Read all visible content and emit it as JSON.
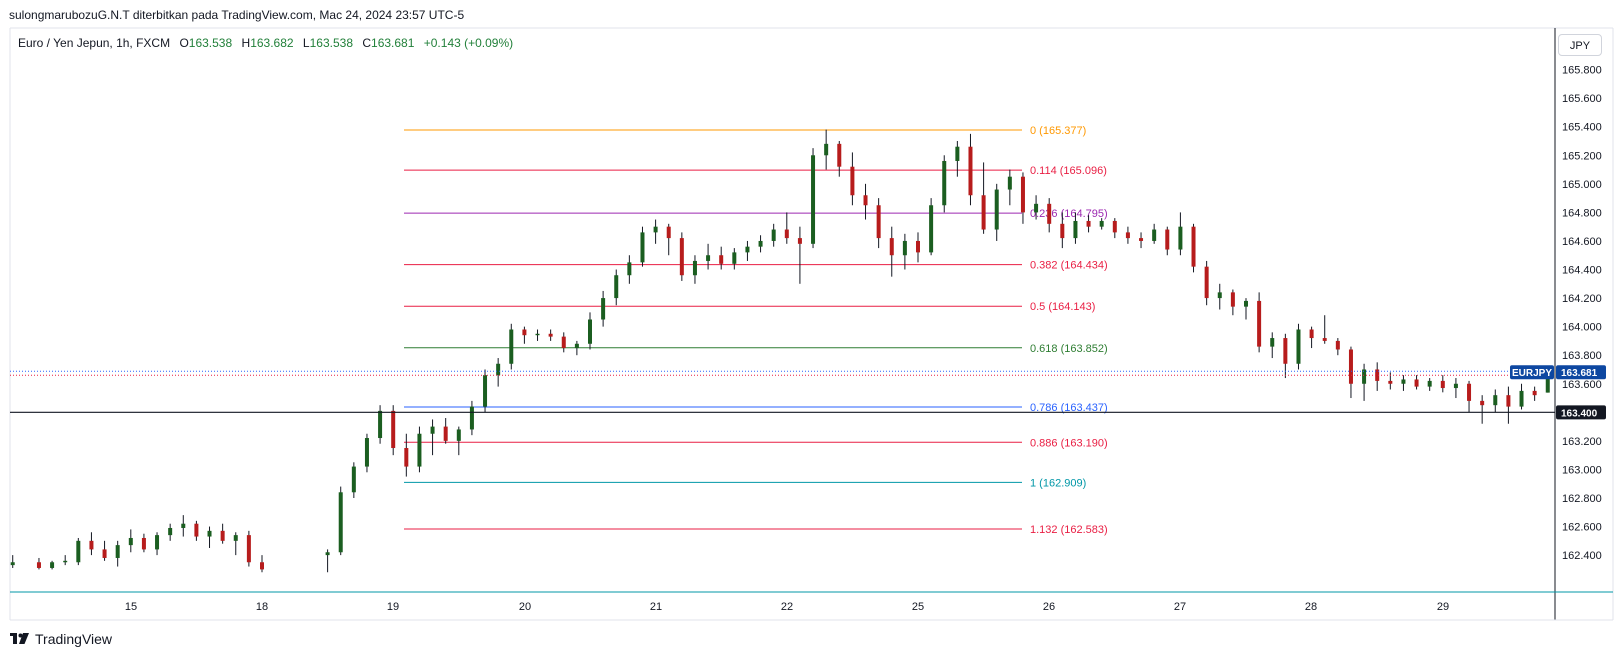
{
  "header": {
    "publisher_text": "sulongmarubozuG.N.T diterbitkan pada TradingView.com, Mac 24, 2024 23:57 UTC-5"
  },
  "legend": {
    "symbol_text": "Euro / Yen Jepun, 1h, FXCM",
    "open_label": "O",
    "open": "163.538",
    "high_label": "H",
    "high": "163.682",
    "low_label": "L",
    "low": "163.538",
    "close_label": "C",
    "close": "163.681",
    "change": "+0.143 (+0.09%)"
  },
  "price_axis": {
    "currency": "JPY",
    "ticks": [
      "165.800",
      "165.600",
      "165.400",
      "165.200",
      "165.000",
      "164.800",
      "164.600",
      "164.400",
      "164.200",
      "164.000",
      "163.800",
      "163.600",
      "163.200",
      "163.000",
      "162.800",
      "162.600",
      "162.400"
    ]
  },
  "price_badge": {
    "symbol": "EURJPY",
    "price": "163.681"
  },
  "crosshair_label": "163.400",
  "time_axis": {
    "ticks": [
      "15",
      "18",
      "19",
      "20",
      "21",
      "22",
      "25",
      "26",
      "27",
      "28",
      "29"
    ]
  },
  "brand": {
    "name": "TradingView"
  },
  "colors": {
    "up": "#1b5e20",
    "down": "#b71c1c",
    "badge": "#0d47a1"
  },
  "chart_data": {
    "type": "candlestick",
    "symbol": "EURJPY",
    "interval": "1h",
    "ylim": [
      162.3,
      165.95
    ],
    "current_price": 163.681,
    "horizontal_line": 163.4,
    "candles": [
      [
        15.6,
        162.3,
        162.38,
        162.29,
        162.36
      ],
      [
        15.8,
        162.32,
        162.38,
        162.3,
        162.34
      ],
      [
        16.1,
        162.33,
        162.4,
        162.31,
        162.35
      ],
      [
        16.3,
        162.35,
        162.38,
        162.3,
        162.31
      ],
      [
        16.4,
        162.31,
        162.36,
        162.3,
        162.35
      ],
      [
        16.5,
        162.35,
        162.4,
        162.33,
        162.36
      ],
      [
        16.6,
        162.35,
        162.52,
        162.33,
        162.5
      ],
      [
        16.7,
        162.5,
        162.56,
        162.4,
        162.44
      ],
      [
        16.8,
        162.44,
        162.5,
        162.36,
        162.38
      ],
      [
        16.9,
        162.38,
        162.5,
        162.32,
        162.47
      ],
      [
        17.0,
        162.47,
        162.58,
        162.42,
        162.52
      ],
      [
        17.1,
        162.52,
        162.55,
        162.42,
        162.44
      ],
      [
        17.2,
        162.44,
        162.56,
        162.4,
        162.54
      ],
      [
        17.3,
        162.54,
        162.62,
        162.5,
        162.59
      ],
      [
        17.4,
        162.59,
        162.68,
        162.53,
        162.62
      ],
      [
        17.5,
        162.62,
        162.64,
        162.5,
        162.53
      ],
      [
        17.6,
        162.53,
        162.6,
        162.45,
        162.57
      ],
      [
        17.7,
        162.57,
        162.62,
        162.48,
        162.5
      ],
      [
        17.8,
        162.5,
        162.56,
        162.4,
        162.54
      ],
      [
        17.9,
        162.54,
        162.57,
        162.32,
        162.35
      ],
      [
        18.0,
        162.35,
        162.4,
        162.28,
        162.3
      ],
      [
        18.5,
        162.4,
        162.44,
        162.28,
        162.42
      ],
      [
        18.6,
        162.42,
        162.88,
        162.4,
        162.84
      ],
      [
        18.7,
        162.84,
        163.05,
        162.8,
        163.02
      ],
      [
        18.8,
        163.02,
        163.25,
        162.98,
        163.22
      ],
      [
        18.9,
        163.22,
        163.45,
        163.18,
        163.41
      ],
      [
        19.0,
        163.41,
        163.45,
        163.1,
        163.15
      ],
      [
        19.1,
        163.15,
        163.25,
        162.95,
        163.02
      ],
      [
        19.2,
        163.02,
        163.3,
        162.98,
        163.25
      ],
      [
        19.3,
        163.25,
        163.35,
        163.1,
        163.3
      ],
      [
        19.4,
        163.3,
        163.36,
        163.18,
        163.2
      ],
      [
        19.5,
        163.2,
        163.3,
        163.1,
        163.28
      ],
      [
        19.6,
        163.28,
        163.48,
        163.24,
        163.44
      ],
      [
        19.7,
        163.44,
        163.7,
        163.4,
        163.66
      ],
      [
        19.8,
        163.66,
        163.78,
        163.58,
        163.74
      ],
      [
        19.9,
        163.74,
        164.02,
        163.7,
        163.98
      ],
      [
        20.0,
        163.98,
        164.0,
        163.88,
        163.94
      ],
      [
        20.1,
        163.94,
        163.98,
        163.9,
        163.95
      ],
      [
        20.2,
        163.95,
        163.98,
        163.9,
        163.93
      ],
      [
        20.3,
        163.93,
        163.96,
        163.82,
        163.85
      ],
      [
        20.4,
        163.85,
        163.9,
        163.8,
        163.88
      ],
      [
        20.5,
        163.88,
        164.1,
        163.84,
        164.05
      ],
      [
        20.6,
        164.05,
        164.25,
        164.0,
        164.2
      ],
      [
        20.7,
        164.2,
        164.4,
        164.15,
        164.36
      ],
      [
        20.8,
        164.36,
        164.5,
        164.3,
        164.45
      ],
      [
        20.9,
        164.45,
        164.7,
        164.42,
        164.66
      ],
      [
        21.0,
        164.66,
        164.75,
        164.58,
        164.7
      ],
      [
        21.1,
        164.7,
        164.72,
        164.5,
        164.62
      ],
      [
        21.2,
        164.62,
        164.66,
        164.32,
        164.36
      ],
      [
        21.3,
        164.36,
        164.5,
        164.3,
        164.46
      ],
      [
        21.4,
        164.46,
        164.58,
        164.4,
        164.5
      ],
      [
        21.5,
        164.5,
        164.56,
        164.4,
        164.44
      ],
      [
        21.6,
        164.44,
        164.55,
        164.4,
        164.52
      ],
      [
        21.7,
        164.52,
        164.6,
        164.46,
        164.56
      ],
      [
        21.8,
        164.56,
        164.64,
        164.52,
        164.6
      ],
      [
        21.9,
        164.6,
        164.72,
        164.56,
        164.68
      ],
      [
        22.0,
        164.68,
        164.8,
        164.58,
        164.62
      ],
      [
        22.1,
        164.62,
        164.7,
        164.3,
        164.58
      ],
      [
        22.2,
        164.58,
        165.25,
        164.55,
        165.2
      ],
      [
        22.3,
        165.2,
        165.38,
        165.1,
        165.28
      ],
      [
        22.4,
        165.28,
        165.3,
        165.05,
        165.12
      ],
      [
        22.5,
        165.12,
        165.22,
        164.85,
        164.92
      ],
      [
        22.6,
        164.92,
        165.0,
        164.75,
        164.85
      ],
      [
        22.7,
        164.85,
        164.9,
        164.55,
        164.62
      ],
      [
        22.8,
        164.62,
        164.7,
        164.35,
        164.5
      ],
      [
        22.9,
        164.5,
        164.65,
        164.4,
        164.6
      ],
      [
        23.0,
        164.6,
        164.66,
        164.45,
        164.52
      ],
      [
        23.1,
        164.52,
        164.9,
        164.5,
        164.85
      ],
      [
        23.2,
        164.85,
        165.2,
        164.8,
        165.16
      ],
      [
        23.3,
        165.16,
        165.3,
        165.05,
        165.26
      ],
      [
        23.4,
        165.26,
        165.35,
        164.85,
        164.92
      ],
      [
        23.5,
        164.92,
        165.15,
        164.65,
        164.68
      ],
      [
        23.6,
        164.68,
        165.0,
        164.6,
        164.96
      ],
      [
        23.7,
        164.96,
        165.1,
        164.85,
        165.05
      ],
      [
        23.8,
        165.05,
        165.08,
        164.72,
        164.8
      ],
      [
        23.9,
        164.8,
        164.92,
        164.75,
        164.86
      ],
      [
        24.0,
        164.86,
        164.9,
        164.66,
        164.72
      ],
      [
        24.1,
        164.72,
        164.8,
        164.55,
        164.62
      ],
      [
        24.2,
        164.62,
        164.8,
        164.58,
        164.74
      ],
      [
        24.3,
        164.74,
        164.78,
        164.66,
        164.7
      ],
      [
        24.4,
        164.7,
        164.76,
        164.68,
        164.74
      ],
      [
        24.5,
        164.74,
        164.76,
        164.62,
        164.66
      ],
      [
        24.6,
        164.66,
        164.7,
        164.58,
        164.62
      ],
      [
        24.7,
        164.62,
        164.66,
        164.55,
        164.6
      ],
      [
        24.8,
        164.6,
        164.72,
        164.58,
        164.68
      ],
      [
        24.9,
        164.68,
        164.7,
        164.5,
        164.54
      ],
      [
        25.0,
        164.54,
        164.8,
        164.5,
        164.7
      ],
      [
        25.1,
        164.7,
        164.72,
        164.38,
        164.42
      ],
      [
        25.2,
        164.42,
        164.46,
        164.15,
        164.2
      ],
      [
        25.3,
        164.2,
        164.3,
        164.12,
        164.24
      ],
      [
        25.4,
        164.24,
        164.26,
        164.08,
        164.14
      ],
      [
        25.5,
        164.14,
        164.2,
        164.05,
        164.18
      ],
      [
        25.6,
        164.18,
        164.24,
        163.82,
        163.86
      ],
      [
        25.7,
        163.86,
        163.96,
        163.78,
        163.92
      ],
      [
        25.8,
        163.92,
        163.95,
        163.64,
        163.74
      ],
      [
        25.9,
        163.74,
        164.02,
        163.7,
        163.98
      ],
      [
        26.0,
        163.98,
        164.0,
        163.85,
        163.92
      ],
      [
        26.1,
        163.92,
        164.08,
        163.88,
        163.9
      ],
      [
        26.2,
        163.9,
        163.92,
        163.8,
        163.84
      ],
      [
        26.3,
        163.84,
        163.86,
        163.5,
        163.6
      ],
      [
        26.4,
        163.6,
        163.74,
        163.48,
        163.7
      ],
      [
        26.5,
        163.7,
        163.75,
        163.55,
        163.62
      ],
      [
        26.6,
        163.62,
        163.68,
        163.56,
        163.6
      ],
      [
        26.7,
        163.6,
        163.66,
        163.55,
        163.63
      ],
      [
        26.8,
        163.63,
        163.66,
        163.56,
        163.58
      ],
      [
        26.9,
        163.58,
        163.64,
        163.55,
        163.62
      ],
      [
        27.0,
        163.62,
        163.66,
        163.54,
        163.57
      ],
      [
        27.1,
        163.57,
        163.64,
        163.5,
        163.6
      ],
      [
        27.2,
        163.6,
        163.62,
        163.4,
        163.48
      ],
      [
        27.3,
        163.48,
        163.52,
        163.32,
        163.45
      ],
      [
        27.4,
        163.45,
        163.56,
        163.4,
        163.52
      ],
      [
        27.5,
        163.52,
        163.58,
        163.32,
        163.44
      ],
      [
        27.6,
        163.44,
        163.6,
        163.42,
        163.55
      ],
      [
        27.7,
        163.55,
        163.58,
        163.48,
        163.52
      ],
      [
        27.8,
        163.538,
        163.682,
        163.538,
        163.681
      ]
    ],
    "fibonacci": [
      {
        "label": "0 (165.377)",
        "price": 165.377,
        "color": "#ff9800"
      },
      {
        "label": "0.114 (165.096)",
        "price": 165.096,
        "color": "#e91e43"
      },
      {
        "label": "0.236 (164.795)",
        "price": 164.795,
        "color": "#9c27b0"
      },
      {
        "label": "0.382 (164.434)",
        "price": 164.434,
        "color": "#e91e43"
      },
      {
        "label": "0.5 (164.143)",
        "price": 164.143,
        "color": "#e91e43"
      },
      {
        "label": "0.618 (163.852)",
        "price": 163.852,
        "color": "#2e7d32"
      },
      {
        "label": "0.786 (163.437)",
        "price": 163.437,
        "color": "#2962ff"
      },
      {
        "label": "0.886 (163.190)",
        "price": 163.19,
        "color": "#e91e43"
      },
      {
        "label": "1 (162.909)",
        "price": 162.909,
        "color": "#0097a7"
      },
      {
        "label": "1.132 (162.583)",
        "price": 162.583,
        "color": "#e91e43"
      }
    ]
  }
}
